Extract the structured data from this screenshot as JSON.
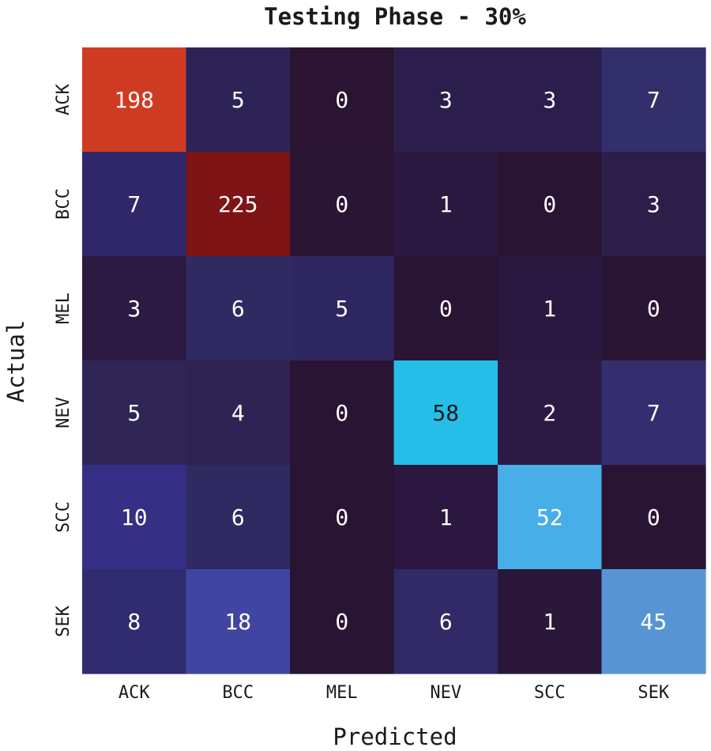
{
  "chart_data": {
    "type": "heatmap",
    "title": "Testing Phase - 30%",
    "xlabel": "Predicted",
    "ylabel": "Actual",
    "x_categories": [
      "ACK",
      "BCC",
      "MEL",
      "NEV",
      "SCC",
      "SEK"
    ],
    "y_categories": [
      "ACK",
      "BCC",
      "MEL",
      "NEV",
      "SCC",
      "SEK"
    ],
    "values": [
      [
        198,
        5,
        0,
        3,
        3,
        7
      ],
      [
        7,
        225,
        0,
        1,
        0,
        3
      ],
      [
        3,
        6,
        5,
        0,
        1,
        0
      ],
      [
        5,
        4,
        0,
        58,
        2,
        7
      ],
      [
        10,
        6,
        0,
        1,
        52,
        0
      ],
      [
        8,
        18,
        0,
        6,
        1,
        45
      ]
    ],
    "cell_colors": [
      [
        "#cf3b22",
        "#2e2356",
        "#2a1431",
        "#2c1e4c",
        "#2c1e4c",
        "#322f6a"
      ],
      [
        "#30286a",
        "#7e1416",
        "#2b1535",
        "#2b1942",
        "#2a1433",
        "#2c1d49"
      ],
      [
        "#2c1a43",
        "#2f2a62",
        "#2f2762",
        "#2a1433",
        "#2b1840",
        "#2a1433"
      ],
      [
        "#302656",
        "#2e2352",
        "#2a1433",
        "#25bee9",
        "#2c1a45",
        "#342d6e"
      ],
      [
        "#352f86",
        "#302a62",
        "#2a1433",
        "#2b1740",
        "#48aee8",
        "#2a1433"
      ],
      [
        "#312c70",
        "#4145a2",
        "#2a1433",
        "#312a66",
        "#2b1739",
        "#5894d3"
      ]
    ],
    "text_colors": [
      [
        "#ffffff",
        "#ffffff",
        "#ffffff",
        "#ffffff",
        "#ffffff",
        "#ffffff"
      ],
      [
        "#ffffff",
        "#ffffff",
        "#ffffff",
        "#ffffff",
        "#ffffff",
        "#ffffff"
      ],
      [
        "#ffffff",
        "#ffffff",
        "#ffffff",
        "#ffffff",
        "#ffffff",
        "#ffffff"
      ],
      [
        "#ffffff",
        "#ffffff",
        "#ffffff",
        "#1a1a1a",
        "#ffffff",
        "#ffffff"
      ],
      [
        "#ffffff",
        "#ffffff",
        "#ffffff",
        "#ffffff",
        "#ffffff",
        "#ffffff"
      ],
      [
        "#ffffff",
        "#ffffff",
        "#ffffff",
        "#ffffff",
        "#ffffff",
        "#ffffff"
      ]
    ]
  }
}
